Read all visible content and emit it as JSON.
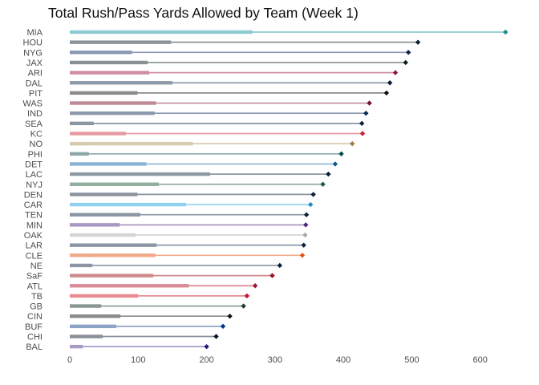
{
  "chart_data": {
    "type": "bar",
    "title": "Total Rush/Pass Yards Allowed by Team (Week 1)",
    "xlabel": "",
    "ylabel": "",
    "xlim": [
      0,
      650
    ],
    "xticks": [
      0,
      100,
      200,
      300,
      400,
      500,
      600
    ],
    "grid": false,
    "legend": "none",
    "series": [
      {
        "name": "rush",
        "description": "thick inner bar"
      },
      {
        "name": "total",
        "description": "thin line ending in diamond marker"
      }
    ],
    "teams": [
      {
        "team": "MIA",
        "rush": 267,
        "total": 637,
        "bar": "#8ccbd2",
        "line": "#8ccbd2",
        "dot": "#1f8a8a"
      },
      {
        "team": "HOU",
        "rush": 148,
        "total": 509,
        "bar": "#8c9399",
        "line": "#8c9399",
        "dot": "#0b1f2f"
      },
      {
        "team": "NYG",
        "rush": 91,
        "total": 495,
        "bar": "#8a97b5",
        "line": "#8a97b5",
        "dot": "#0b1f4b"
      },
      {
        "team": "JAX",
        "rush": 114,
        "total": 491,
        "bar": "#8a8f93",
        "line": "#8a8f93",
        "dot": "#0b1b1f"
      },
      {
        "team": "ARI",
        "rush": 116,
        "total": 476,
        "bar": "#cf8ea3",
        "line": "#cf8ea3",
        "dot": "#8e1538"
      },
      {
        "team": "DAL",
        "rush": 150,
        "total": 468,
        "bar": "#8d9ba8",
        "line": "#8d9ba8",
        "dot": "#0b1d3a"
      },
      {
        "team": "PIT",
        "rush": 99,
        "total": 463,
        "bar": "#8a8a8a",
        "line": "#8a8a8a",
        "dot": "#101010"
      },
      {
        "team": "WAS",
        "rush": 126,
        "total": 438,
        "bar": "#c08b98",
        "line": "#c08b98",
        "dot": "#6e1230"
      },
      {
        "team": "IND",
        "rush": 124,
        "total": 433,
        "bar": "#8c98ac",
        "line": "#8c98ac",
        "dot": "#0b2756"
      },
      {
        "team": "SEA",
        "rush": 35,
        "total": 427,
        "bar": "#8a97a3",
        "line": "#8a97a3",
        "dot": "#0b223a"
      },
      {
        "team": "KC",
        "rush": 82,
        "total": 428,
        "bar": "#e69aa3",
        "line": "#e69aa3",
        "dot": "#d01f35"
      },
      {
        "team": "NO",
        "rush": 180,
        "total": 413,
        "bar": "#d7cbb0",
        "line": "#d7cbb0",
        "dot": "#9a7d44"
      },
      {
        "team": "PHI",
        "rush": 28,
        "total": 397,
        "bar": "#8ea7a9",
        "line": "#8ea7a9",
        "dot": "#004c54"
      },
      {
        "team": "DET",
        "rush": 112,
        "total": 388,
        "bar": "#8bb3d4",
        "line": "#8bb3d4",
        "dot": "#0b5a8e"
      },
      {
        "team": "LAC",
        "rush": 205,
        "total": 378,
        "bar": "#8c98a3",
        "line": "#8c98a3",
        "dot": "#0b1f3a"
      },
      {
        "team": "NYJ",
        "rush": 130,
        "total": 370,
        "bar": "#8fae9e",
        "line": "#8fae9e",
        "dot": "#1f5b3b"
      },
      {
        "team": "DEN",
        "rush": 99,
        "total": 356,
        "bar": "#8c94a0",
        "line": "#8c94a0",
        "dot": "#0b1f3a"
      },
      {
        "team": "CAR",
        "rush": 170,
        "total": 352,
        "bar": "#8ed0ee",
        "line": "#8ed0ee",
        "dot": "#1b8fb9"
      },
      {
        "team": "TEN",
        "rush": 103,
        "total": 346,
        "bar": "#8b95a4",
        "line": "#8b95a4",
        "dot": "#0b1f3a"
      },
      {
        "team": "MIN",
        "rush": 73,
        "total": 345,
        "bar": "#a898c2",
        "line": "#a898c2",
        "dot": "#4f2683"
      },
      {
        "team": "OAK",
        "rush": 96,
        "total": 344,
        "bar": "#d5d5d8",
        "line": "#d5d5d8",
        "dot": "#a5acaf"
      },
      {
        "team": "LAR",
        "rush": 127,
        "total": 342,
        "bar": "#8a98a6",
        "line": "#8a98a6",
        "dot": "#0b2245"
      },
      {
        "team": "CLE",
        "rush": 125,
        "total": 340,
        "bar": "#f2a988",
        "line": "#f2a988",
        "dot": "#e25314"
      },
      {
        "team": "NE",
        "rush": 33,
        "total": 307,
        "bar": "#8c95a5",
        "line": "#8c95a5",
        "dot": "#0b1f3a"
      },
      {
        "team": "SaF",
        "rush": 122,
        "total": 296,
        "bar": "#cf8b8b",
        "line": "#cf8b8b",
        "dot": "#9b1020"
      },
      {
        "team": "ATL",
        "rush": 174,
        "total": 271,
        "bar": "#db8c98",
        "line": "#db8c98",
        "dot": "#a6162a"
      },
      {
        "team": "TB",
        "rush": 100,
        "total": 259,
        "bar": "#e88c91",
        "line": "#e88c91",
        "dot": "#c8102e"
      },
      {
        "team": "GB",
        "rush": 46,
        "total": 254,
        "bar": "#8a9690",
        "line": "#8a9690",
        "dot": "#1f3b2b"
      },
      {
        "team": "CIN",
        "rush": 74,
        "total": 234,
        "bar": "#8b8b8b",
        "line": "#8b8b8b",
        "dot": "#101010"
      },
      {
        "team": "BUF",
        "rush": 68,
        "total": 224,
        "bar": "#8ea4c6",
        "line": "#8ea4c6",
        "dot": "#00338d"
      },
      {
        "team": "CHI",
        "rush": 48,
        "total": 214,
        "bar": "#8a9099",
        "line": "#8a9099",
        "dot": "#0b162a"
      },
      {
        "team": "BAL",
        "rush": 19,
        "total": 200,
        "bar": "#a79bc5",
        "line": "#a79bc5",
        "dot": "#241773"
      }
    ]
  }
}
